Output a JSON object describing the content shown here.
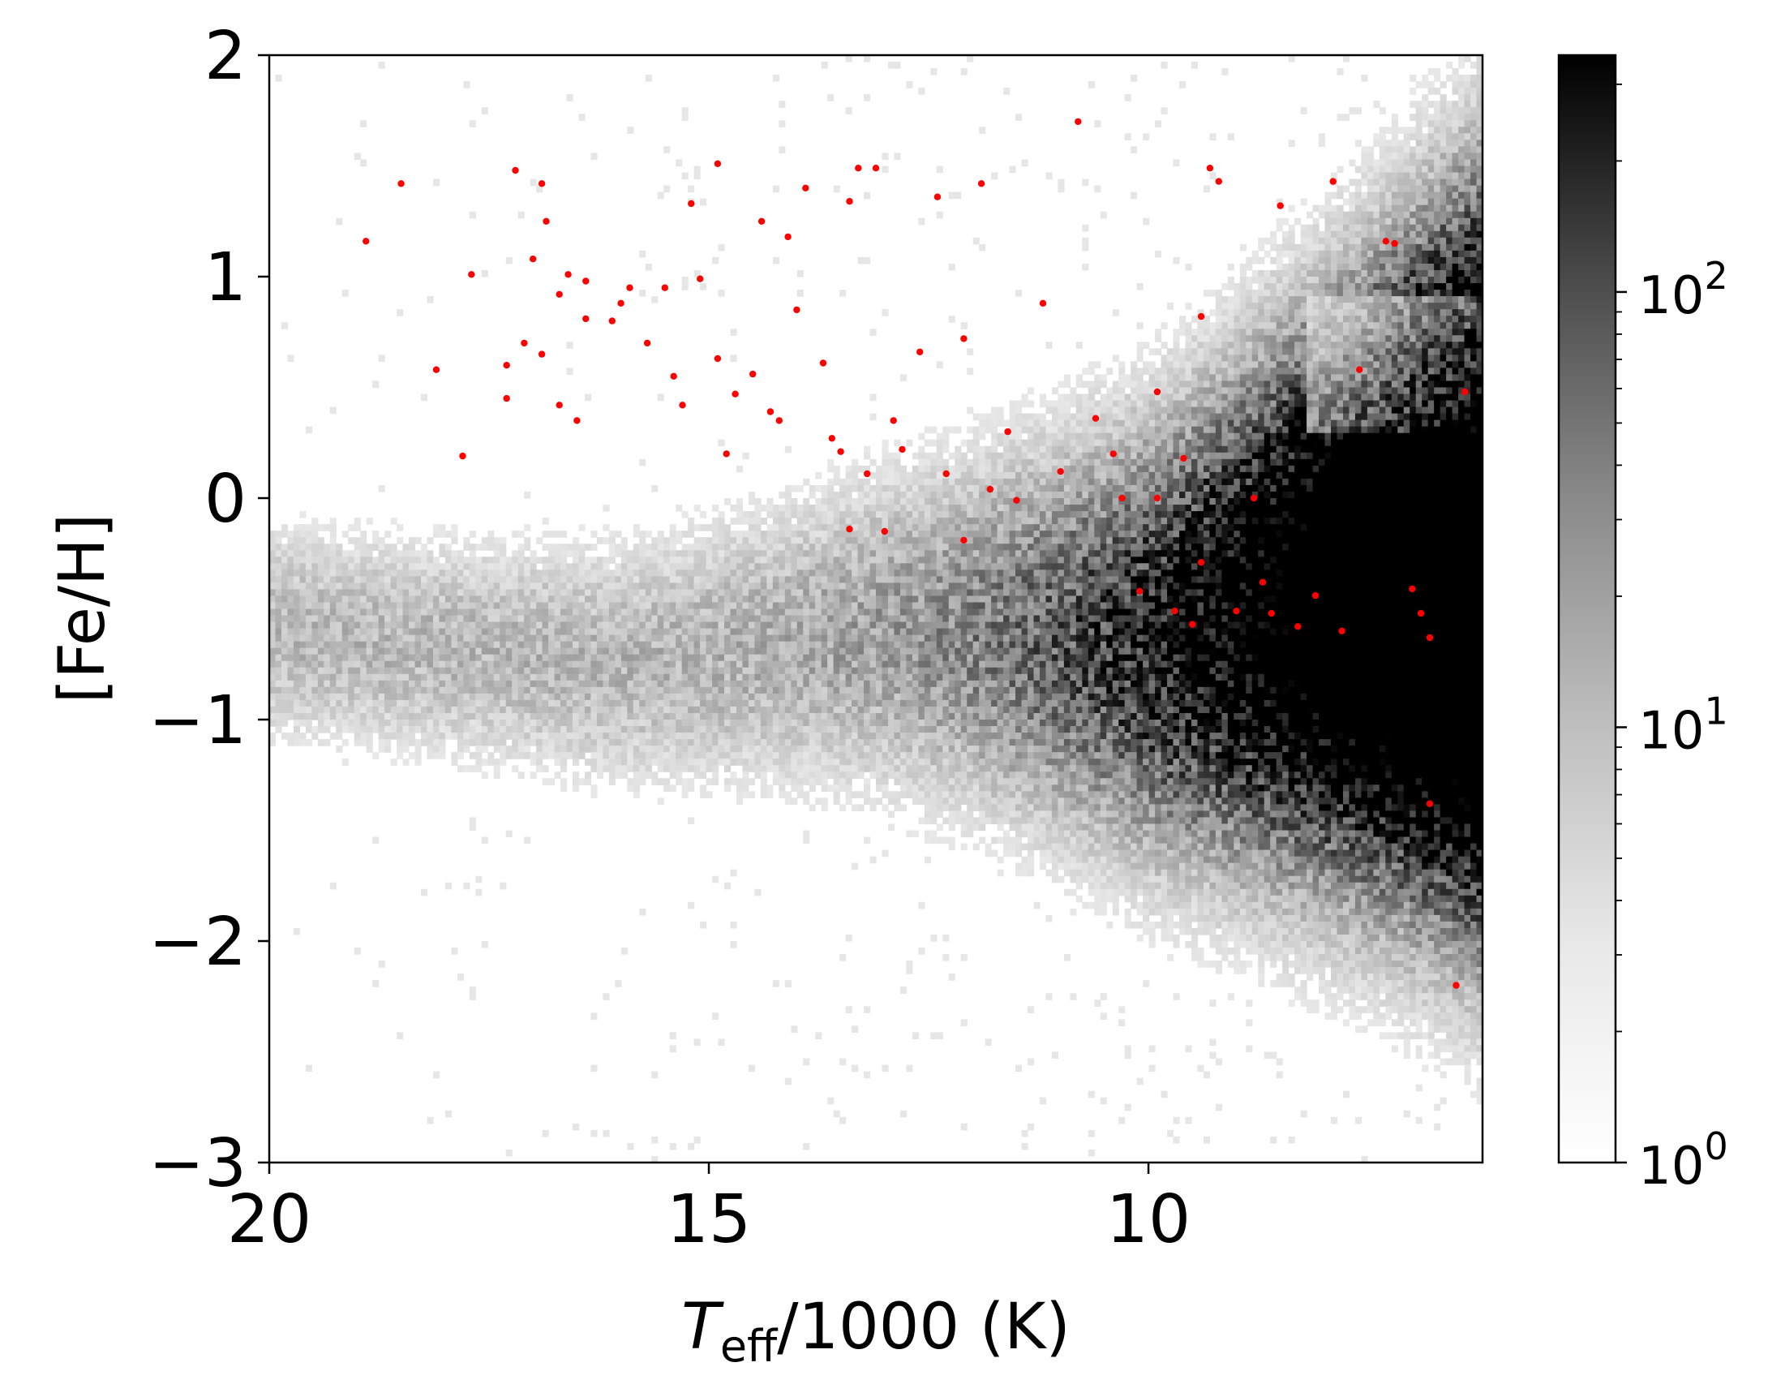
{
  "chart_data": {
    "type": "scatter",
    "xlabel": {
      "italic": "T",
      "subscript": "eff",
      "rest": "/1000 (K)"
    },
    "ylabel": "[Fe/H]",
    "xlim": [
      20,
      6.2
    ],
    "ylim": [
      -3,
      2
    ],
    "x_inverted": true,
    "grid": false,
    "xticks": [
      {
        "value": 20,
        "label": "20"
      },
      {
        "value": 15,
        "label": "15"
      },
      {
        "value": 10,
        "label": "10"
      }
    ],
    "yticks": [
      {
        "value": 2,
        "label": "2"
      },
      {
        "value": 1,
        "label": "1"
      },
      {
        "value": 0,
        "label": "0"
      },
      {
        "value": -1,
        "label": "−1"
      },
      {
        "value": -2,
        "label": "−2"
      },
      {
        "value": -3,
        "label": "−3"
      }
    ],
    "background_density": {
      "type": "heatmap",
      "colormap": "Greys",
      "scale": "log",
      "description_ridge": [
        {
          "teff": 20.0,
          "feh": -0.6
        },
        {
          "teff": 16.0,
          "feh": -0.75
        },
        {
          "teff": 13.0,
          "feh": -0.6
        },
        {
          "teff": 10.0,
          "feh": -0.65
        },
        {
          "teff": 8.0,
          "feh": -0.45
        },
        {
          "teff": 6.5,
          "feh": -0.3
        }
      ]
    },
    "colorbar": {
      "scale": "log",
      "range": [
        1,
        350
      ],
      "colors": [
        "#ffffff",
        "#000000"
      ],
      "ticks": [
        {
          "value": 1,
          "base": "10",
          "exp": "0"
        },
        {
          "value": 10,
          "base": "10",
          "exp": "1"
        },
        {
          "value": 100,
          "base": "10",
          "exp": "2"
        }
      ]
    },
    "series": [
      {
        "color": "#ff0000",
        "points": [
          [
            18.9,
            1.16
          ],
          [
            18.5,
            1.42
          ],
          [
            18.1,
            0.58
          ],
          [
            17.7,
            1.01
          ],
          [
            17.8,
            0.19
          ],
          [
            17.2,
            1.48
          ],
          [
            17.3,
            0.6
          ],
          [
            17.3,
            0.45
          ],
          [
            17.1,
            0.7
          ],
          [
            17.0,
            1.08
          ],
          [
            16.9,
            1.42
          ],
          [
            16.85,
            1.25
          ],
          [
            16.9,
            0.65
          ],
          [
            16.7,
            0.92
          ],
          [
            16.7,
            0.42
          ],
          [
            16.6,
            1.01
          ],
          [
            16.5,
            0.35
          ],
          [
            16.4,
            0.98
          ],
          [
            16.4,
            0.81
          ],
          [
            16.1,
            0.8
          ],
          [
            16.0,
            0.88
          ],
          [
            15.9,
            0.95
          ],
          [
            15.7,
            0.7
          ],
          [
            15.5,
            0.95
          ],
          [
            15.4,
            0.55
          ],
          [
            15.3,
            0.42
          ],
          [
            15.2,
            1.33
          ],
          [
            15.1,
            0.99
          ],
          [
            14.9,
            1.51
          ],
          [
            14.9,
            0.63
          ],
          [
            14.8,
            0.2
          ],
          [
            14.7,
            0.47
          ],
          [
            14.5,
            0.56
          ],
          [
            14.4,
            1.25
          ],
          [
            14.3,
            0.39
          ],
          [
            14.2,
            0.35
          ],
          [
            14.1,
            1.18
          ],
          [
            14.0,
            0.85
          ],
          [
            13.9,
            1.4
          ],
          [
            13.7,
            0.61
          ],
          [
            13.6,
            0.27
          ],
          [
            13.5,
            0.21
          ],
          [
            13.4,
            1.34
          ],
          [
            13.4,
            -0.14
          ],
          [
            13.3,
            1.49
          ],
          [
            13.2,
            0.11
          ],
          [
            13.1,
            1.49
          ],
          [
            13.0,
            -0.15
          ],
          [
            12.9,
            0.35
          ],
          [
            12.8,
            0.22
          ],
          [
            12.6,
            0.66
          ],
          [
            12.4,
            1.36
          ],
          [
            12.3,
            0.11
          ],
          [
            12.1,
            0.72
          ],
          [
            12.1,
            -0.19
          ],
          [
            11.9,
            1.42
          ],
          [
            11.8,
            0.04
          ],
          [
            11.6,
            0.3
          ],
          [
            11.5,
            -0.01
          ],
          [
            11.2,
            0.88
          ],
          [
            11.0,
            0.12
          ],
          [
            10.8,
            1.7
          ],
          [
            10.6,
            0.36
          ],
          [
            10.4,
            0.2
          ],
          [
            10.3,
            0.0
          ],
          [
            10.1,
            -0.42
          ],
          [
            9.9,
            0.0
          ],
          [
            9.9,
            0.48
          ],
          [
            9.7,
            -0.51
          ],
          [
            9.6,
            0.18
          ],
          [
            9.5,
            -0.57
          ],
          [
            9.4,
            -0.29
          ],
          [
            9.4,
            0.82
          ],
          [
            9.3,
            1.49
          ],
          [
            9.2,
            1.43
          ],
          [
            9.0,
            -0.51
          ],
          [
            8.8,
            0.0
          ],
          [
            8.7,
            -0.38
          ],
          [
            8.6,
            -0.52
          ],
          [
            8.5,
            1.32
          ],
          [
            8.3,
            -0.58
          ],
          [
            8.1,
            -0.44
          ],
          [
            7.9,
            1.43
          ],
          [
            7.8,
            -0.6
          ],
          [
            7.6,
            0.58
          ],
          [
            7.3,
            1.16
          ],
          [
            7.2,
            1.15
          ],
          [
            7.0,
            -0.41
          ],
          [
            6.9,
            -0.52
          ],
          [
            6.8,
            -0.63
          ],
          [
            6.8,
            -1.38
          ],
          [
            6.4,
            0.48
          ],
          [
            6.5,
            -2.2
          ]
        ]
      }
    ]
  }
}
